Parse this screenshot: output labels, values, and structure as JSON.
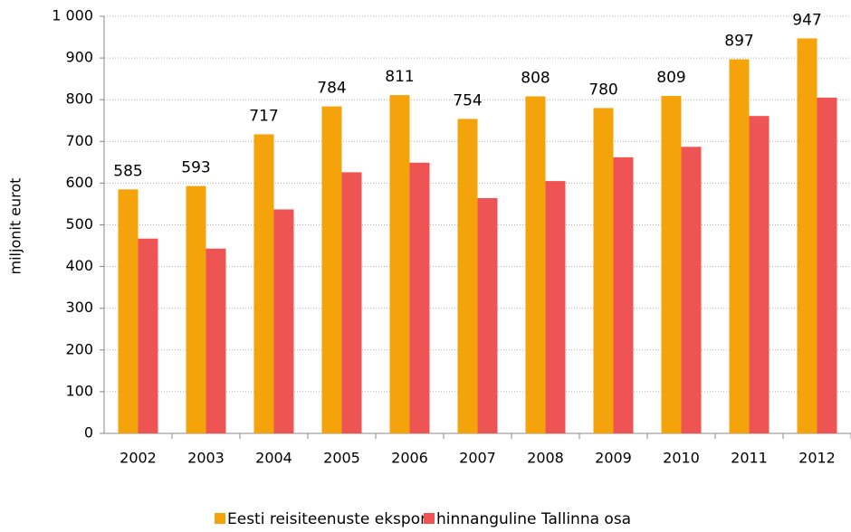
{
  "chart_data": {
    "type": "bar",
    "y_axis_label": "miljonit eurot",
    "categories": [
      "2002",
      "2003",
      "2004",
      "2005",
      "2006",
      "2007",
      "2008",
      "2009",
      "2010",
      "2011",
      "2012"
    ],
    "series": [
      {
        "name": "Eesti reisiteenuste eksport",
        "color": "#f5a30a",
        "values": [
          585,
          593,
          717,
          784,
          811,
          754,
          808,
          780,
          809,
          897,
          947
        ]
      },
      {
        "name": "hinnanguline Tallinna osa",
        "color": "#ef5455",
        "values": [
          467,
          443,
          537,
          626,
          649,
          564,
          605,
          662,
          687,
          761,
          805
        ]
      }
    ],
    "ylim": [
      0,
      1000
    ],
    "yticks": [
      0,
      100,
      200,
      300,
      400,
      500,
      600,
      700,
      800,
      900,
      {
        "value": 1000,
        "label": "1 000"
      }
    ],
    "grid": true,
    "legend": "bottom"
  }
}
